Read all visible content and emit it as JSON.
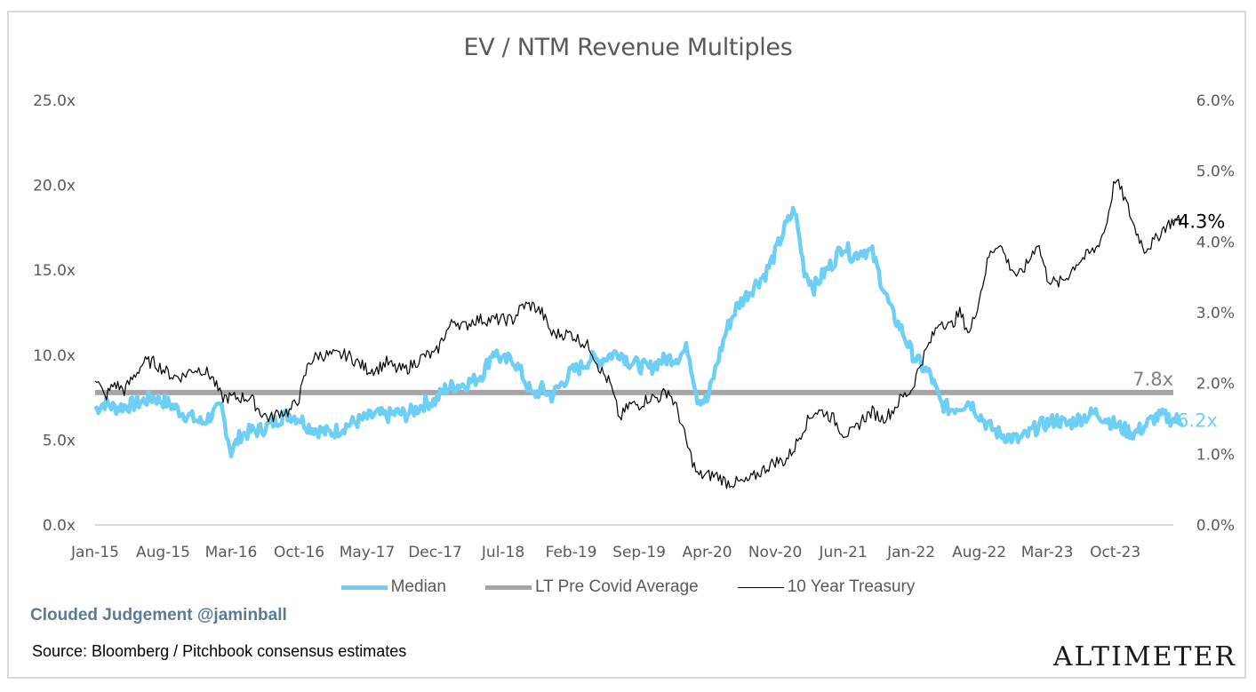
{
  "chart_data": {
    "type": "line",
    "title": "EV / NTM Revenue Multiples",
    "xlabel": "",
    "ylabel": "",
    "y2label": "",
    "ylim": [
      0,
      25
    ],
    "y2lim": [
      0,
      6
    ],
    "yticks": [
      "0.0x",
      "5.0x",
      "10.0x",
      "15.0x",
      "20.0x",
      "25.0x"
    ],
    "y2ticks": [
      "0.0%",
      "1.0%",
      "2.0%",
      "3.0%",
      "4.0%",
      "5.0%",
      "6.0%"
    ],
    "xticks": [
      "Jan-15",
      "Aug-15",
      "Mar-16",
      "Oct-16",
      "May-17",
      "Dec-17",
      "Jul-18",
      "Feb-19",
      "Sep-19",
      "Apr-20",
      "Nov-20",
      "Jun-21",
      "Jan-22",
      "Aug-22",
      "Mar-23",
      "Oct-23"
    ],
    "x_start": "Jan-15",
    "x_frequency": "monthly",
    "grid": false,
    "legend_position": "bottom",
    "series": [
      {
        "name": "Median",
        "axis": "left",
        "color": "#6dcff6",
        "end_label": "6.2x",
        "values": [
          6.8,
          7.2,
          6.9,
          7.0,
          7.1,
          7.3,
          7.5,
          7.3,
          7.0,
          6.6,
          6.3,
          6.0,
          6.5,
          6.9,
          4.3,
          5.3,
          5.5,
          5.6,
          5.9,
          6.3,
          6.5,
          6.3,
          5.8,
          5.6,
          5.4,
          5.6,
          5.9,
          6.1,
          6.3,
          6.5,
          6.4,
          6.6,
          6.5,
          6.8,
          7.2,
          7.3,
          8.0,
          8.2,
          8.3,
          8.5,
          9.0,
          10.3,
          9.6,
          9.8,
          8.8,
          7.6,
          8.0,
          7.6,
          8.3,
          9.0,
          9.3,
          9.8,
          9.7,
          10.0,
          10.2,
          9.6,
          9.4,
          9.2,
          9.6,
          9.8,
          9.9,
          10.4,
          7.5,
          7.3,
          9.5,
          11.5,
          12.8,
          13.5,
          14.2,
          14.8,
          16.0,
          17.5,
          18.6,
          15.0,
          14.0,
          14.8,
          15.5,
          16.5,
          15.8,
          16.2,
          16.0,
          14.2,
          12.5,
          11.5,
          10.2,
          9.4,
          8.8,
          7.2,
          6.8,
          7.0,
          7.3,
          6.5,
          5.8,
          5.4,
          5.2,
          5.0,
          5.3,
          5.8,
          6.0,
          6.2,
          5.9,
          6.2,
          6.4,
          6.6,
          6.3,
          5.9,
          5.6,
          5.4,
          5.8,
          6.3,
          6.4,
          6.2,
          6.2
        ]
      },
      {
        "name": "LT Pre Covid Average",
        "axis": "left",
        "color": "#a6a6a6",
        "end_label": "7.8x",
        "value": 7.8
      },
      {
        "name": "10 Year Treasury",
        "axis": "right",
        "color": "#000000",
        "end_label": "4.3%",
        "values": [
          2.1,
          1.8,
          2.0,
          1.9,
          2.1,
          2.3,
          2.3,
          2.2,
          2.1,
          2.1,
          2.2,
          2.2,
          2.1,
          1.8,
          1.8,
          1.8,
          1.8,
          1.6,
          1.5,
          1.6,
          1.6,
          1.8,
          2.3,
          2.4,
          2.4,
          2.4,
          2.4,
          2.3,
          2.2,
          2.2,
          2.3,
          2.2,
          2.2,
          2.3,
          2.4,
          2.4,
          2.7,
          2.9,
          2.8,
          2.9,
          2.9,
          2.9,
          2.9,
          2.9,
          3.1,
          3.1,
          3.0,
          2.7,
          2.7,
          2.7,
          2.6,
          2.5,
          2.2,
          2.0,
          1.5,
          1.7,
          1.7,
          1.8,
          1.8,
          1.9,
          1.6,
          1.1,
          0.7,
          0.7,
          0.7,
          0.6,
          0.6,
          0.6,
          0.7,
          0.8,
          0.9,
          0.9,
          1.1,
          1.4,
          1.6,
          1.6,
          1.5,
          1.3,
          1.3,
          1.5,
          1.6,
          1.5,
          1.6,
          1.8,
          1.9,
          2.3,
          2.6,
          2.9,
          2.8,
          3.0,
          2.7,
          3.2,
          3.8,
          4.0,
          3.7,
          3.5,
          3.7,
          4.0,
          3.5,
          3.4,
          3.5,
          3.7,
          3.8,
          3.9,
          4.2,
          4.9,
          4.6,
          4.2,
          3.9,
          4.0,
          4.2,
          4.3,
          4.3
        ]
      }
    ]
  },
  "legend": {
    "items": [
      {
        "label": "Median",
        "color": "#6dcff6"
      },
      {
        "label": "LT Pre Covid Average",
        "color": "#a6a6a6"
      },
      {
        "label": "10 Year Treasury",
        "color": "#000000"
      }
    ]
  },
  "footer": {
    "brand": "Clouded Judgement @jaminball",
    "source": "Source: Bloomberg / Pitchbook consensus estimates",
    "logo": "ALTIMETER"
  }
}
